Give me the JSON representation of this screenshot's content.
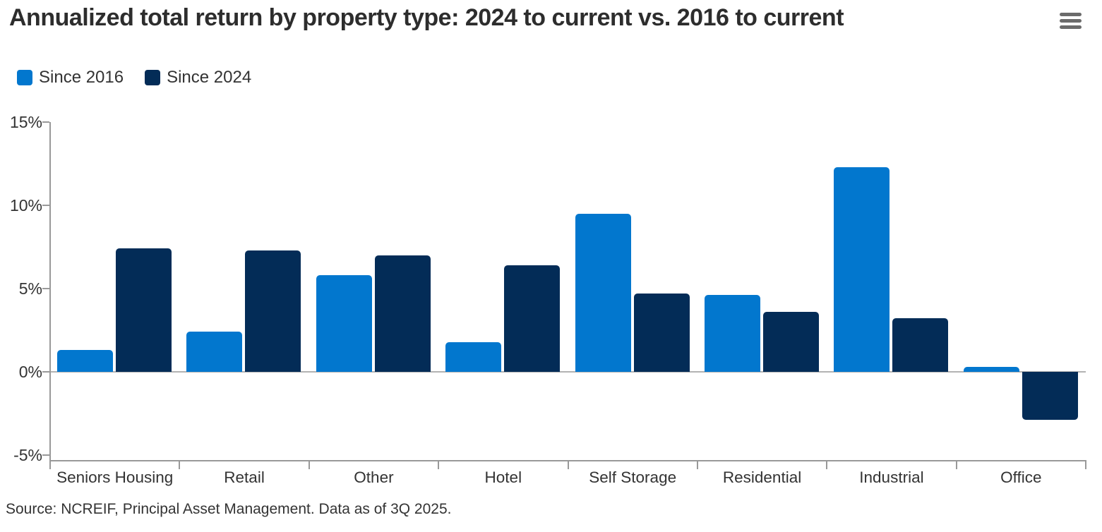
{
  "header": {
    "menu_icon": "hamburger-menu-icon"
  },
  "chart_data": {
    "type": "bar",
    "title": "Annualized total return by property type: 2024 to current vs. 2016 to current",
    "categories": [
      "Seniors Housing",
      "Retail",
      "Other",
      "Hotel",
      "Self Storage",
      "Residential",
      "Industrial",
      "Office"
    ],
    "series": [
      {
        "name": "Since 2016",
        "color": "#0277CE",
        "values": [
          1.3,
          2.4,
          5.8,
          1.8,
          9.5,
          4.6,
          12.3,
          0.3
        ]
      },
      {
        "name": "Since 2024",
        "color": "#032C57",
        "values": [
          7.4,
          7.3,
          7.0,
          6.4,
          4.7,
          3.6,
          3.2,
          -2.9
        ]
      }
    ],
    "xlabel": "",
    "ylabel": "",
    "ylim": [
      -5,
      15
    ],
    "ytick_values": [
      15,
      10,
      5,
      0,
      -5
    ],
    "ytick_labels": [
      "15%",
      "10%",
      "5%",
      "0%",
      "-5%"
    ],
    "legend_position": "top-left",
    "grid": "zero-line-only",
    "axis_color": "#999999",
    "zero_line_color": "#b3b3b3"
  },
  "footer": {
    "source": "Source: NCREIF, Principal Asset Management. Data as of 3Q 2025."
  }
}
